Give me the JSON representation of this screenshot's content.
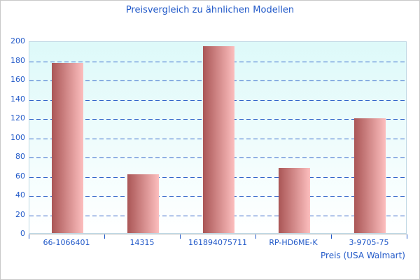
{
  "title": "Preisvergleich zu ähnlichen Modellen",
  "chart_data": {
    "type": "bar",
    "title": "Preisvergleich zu ähnlichen Modellen",
    "categories": [
      "66-1066401",
      "14315",
      "161894075711",
      "RP-HD6ME-K",
      "3-9705-75"
    ],
    "values": [
      177,
      61,
      194,
      68,
      119
    ],
    "xlabel": "Preis (USA Walmart)",
    "ylabel": "",
    "ylim": [
      0,
      200
    ],
    "ytick_step": 20,
    "yticks": [
      0,
      20,
      40,
      60,
      80,
      100,
      120,
      140,
      160,
      180,
      200
    ],
    "grid": "horizontal-dashed",
    "legend": false
  },
  "colors": {
    "text_blue": "#2058c8",
    "grid_blue": "#2e62c8",
    "bar_gradient_start": "#aa5656",
    "bar_gradient_end": "#fcbebe",
    "plot_bg_top": "#ddf9f9",
    "plot_bg_bottom": "#ffffff",
    "plot_border": "#bfd8e4",
    "axis_line": "#cccccc",
    "outer_border": "#c9c9c9"
  }
}
